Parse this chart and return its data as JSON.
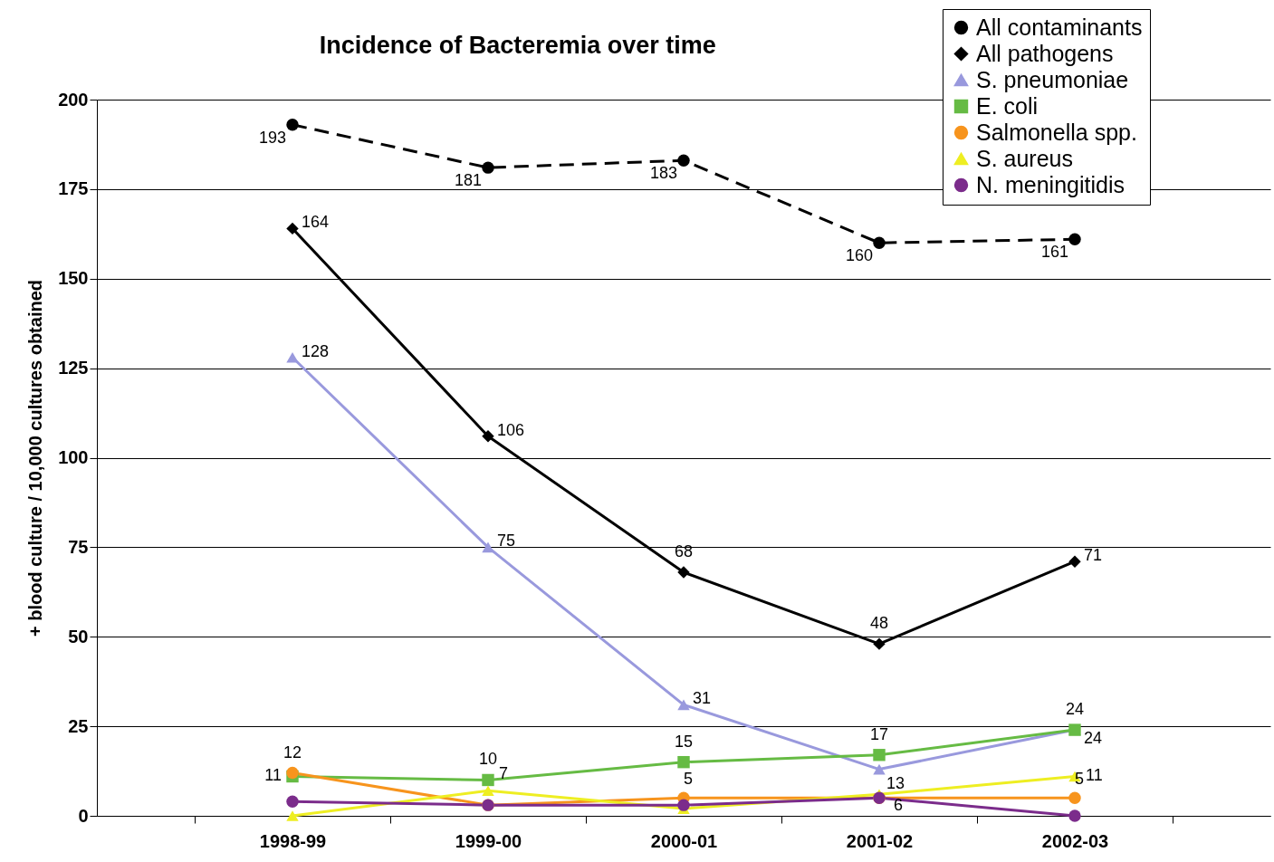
{
  "chart_data": {
    "type": "line",
    "title": "Incidence of  Bacteremia over time",
    "ylabel": "+ blood culture / 10,000 cultures obtained",
    "categories": [
      "1998-99",
      "1999-00",
      "2000-01",
      "2001-02",
      "2002-03"
    ],
    "ylim": [
      0,
      200
    ],
    "yticks": [
      0,
      25,
      50,
      75,
      100,
      125,
      150,
      175,
      200
    ],
    "grid": "y",
    "legend": "top right",
    "series": [
      {
        "name": "All contaminants",
        "color": "#000000",
        "marker": "circle",
        "line_style": "dashed",
        "values": [
          193,
          181,
          183,
          160,
          161
        ],
        "value_labels": [
          "193",
          "181",
          "183",
          "160",
          "161"
        ]
      },
      {
        "name": "All pathogens",
        "color": "#000000",
        "marker": "diamond",
        "line_style": "solid",
        "values": [
          164,
          106,
          68,
          48,
          71
        ],
        "value_labels": [
          "164",
          "106",
          "68",
          "48",
          "71"
        ]
      },
      {
        "name": "S. pneumoniae",
        "color": "#9999dd",
        "marker": "triangle",
        "line_style": "solid",
        "values": [
          128,
          75,
          31,
          13,
          24
        ],
        "value_labels": [
          "128",
          "75",
          "31",
          "13",
          "24"
        ]
      },
      {
        "name": "E. coli",
        "color": "#66bb44",
        "marker": "square",
        "line_style": "solid",
        "values": [
          11,
          10,
          15,
          17,
          24
        ],
        "value_labels": [
          "11",
          "10",
          "15",
          "17",
          "24"
        ]
      },
      {
        "name": "Salmonella spp.",
        "color": "#f7941d",
        "marker": "circle",
        "line_style": "solid",
        "values": [
          12,
          3,
          5,
          5,
          5
        ],
        "value_labels": [
          "12",
          null,
          "5",
          null,
          "5"
        ]
      },
      {
        "name": "S. aureus",
        "color": "#eeee22",
        "marker": "triangle",
        "line_style": "solid",
        "values": [
          0,
          7,
          2,
          6,
          11
        ],
        "value_labels": [
          null,
          "7",
          null,
          "6",
          "11"
        ]
      },
      {
        "name": "N. meningitidis",
        "color": "#7b2c8b",
        "marker": "circle",
        "line_style": "solid",
        "values": [
          4,
          3,
          3,
          5,
          0
        ],
        "value_labels": [
          null,
          null,
          null,
          null,
          null
        ]
      }
    ]
  }
}
